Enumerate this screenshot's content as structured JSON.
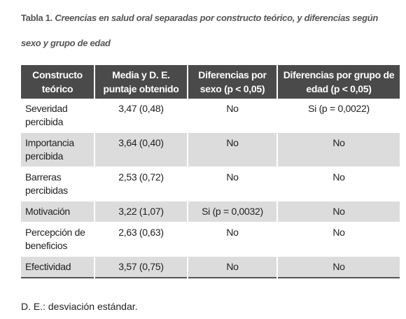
{
  "caption": {
    "label": "Tabla 1.",
    "title": "Creencias en salud oral separadas por constructo teórico, y diferencias según sexo y grupo de edad"
  },
  "table": {
    "header": [
      "Constructo teórico",
      "Media y D. E. puntaje obtenido",
      "Diferencias por sexo (p < 0,05)",
      "Diferencias por grupo de edad (p < 0,05)"
    ],
    "rows": [
      [
        "Severidad percibida",
        "3,47 (0,48)",
        "No",
        "Si (p = 0,0022)"
      ],
      [
        "Importancia percibida",
        "3,64 (0,40)",
        "No",
        "No"
      ],
      [
        "Barreras percibidas",
        "2,53 (0,72)",
        "No",
        "No"
      ],
      [
        "Motivación",
        "3,22 (1,07)",
        "Si (p = 0,0032)",
        "No"
      ],
      [
        "Percepción de beneficios",
        "2,63 (0,63)",
        "No",
        "No"
      ],
      [
        "Efectividad",
        "3,57 (0,75)",
        "No",
        "No"
      ]
    ]
  },
  "footnote": "D. E.: desviación estándar."
}
